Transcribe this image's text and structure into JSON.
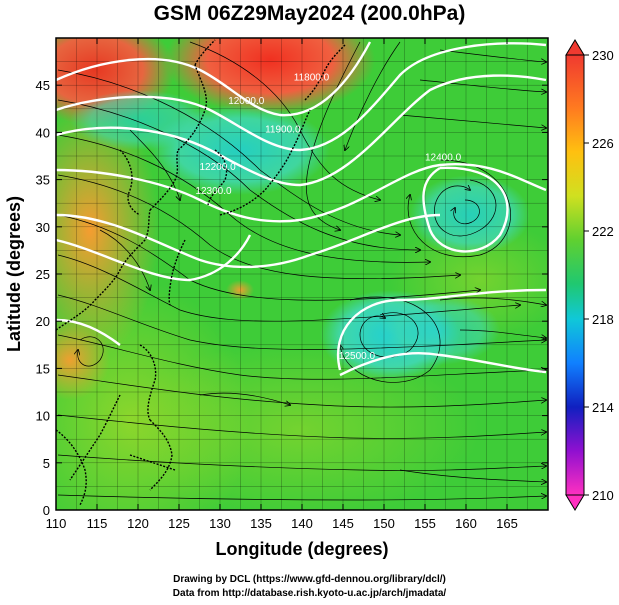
{
  "title": "GSM 06Z29May2024 (200.0hPa)",
  "xlabel": "Longitude (degrees)",
  "ylabel": "Latitude (degrees)",
  "footer_line1": "Drawing by DCL (https://www.gfd-dennou.org/library/dcl/)",
  "footer_line2": "Data from http://database.rish.kyoto-u.ac.jp/arch/jmadata/",
  "map": {
    "lon_range": [
      110,
      170
    ],
    "lat_range": [
      0,
      50
    ],
    "lon_ticks": [
      110,
      115,
      120,
      125,
      130,
      135,
      140,
      145,
      150,
      155,
      160,
      165
    ],
    "lat_ticks": [
      0,
      5,
      10,
      15,
      20,
      25,
      30,
      35,
      40,
      45
    ],
    "contour_labels": [
      {
        "text": "12200.0",
        "lon": 127.5,
        "lat": 36.0
      },
      {
        "text": "12300.0",
        "lon": 127.0,
        "lat": 33.5
      },
      {
        "text": "12000.0",
        "lon": 131.0,
        "lat": 43.0
      },
      {
        "text": "11900.0",
        "lon": 135.5,
        "lat": 40.0
      },
      {
        "text": "11800.0",
        "lon": 139.0,
        "lat": 45.5
      },
      {
        "text": "12400.0",
        "lon": 155.0,
        "lat": 37.0
      },
      {
        "text": "12500.0",
        "lon": 144.5,
        "lat": 16.0
      }
    ]
  },
  "colorbar": {
    "ticks": [
      "230",
      "226",
      "222",
      "218",
      "214",
      "210"
    ],
    "colors": [
      "#ff4040",
      "#ff9020",
      "#ffe000",
      "#a0e020",
      "#30d030",
      "#20c8c0",
      "#20a0ff",
      "#2040d0",
      "#8000c0",
      "#ff00c0"
    ]
  }
}
